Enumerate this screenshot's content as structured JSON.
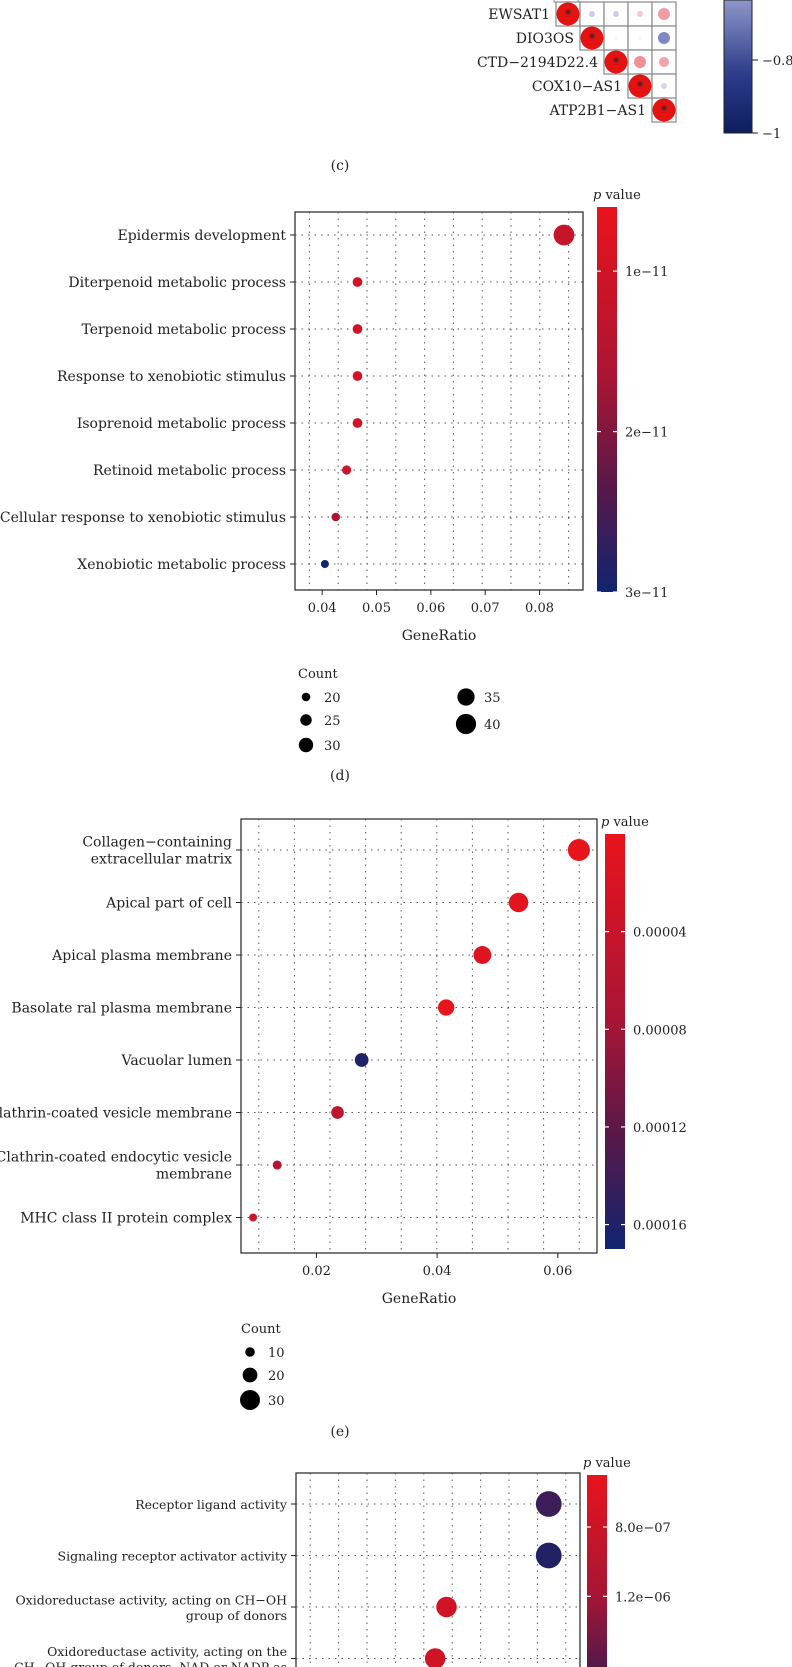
{
  "panel_c": {
    "label": "(c)",
    "gene_labels": [
      "EWSAT1",
      "DIO3OS",
      "CTD−2194D22.4",
      "COX10−AS1",
      "ATP2B1−AS1"
    ],
    "star": "*",
    "colorbar_ticks": [
      "−0.8",
      "−1"
    ]
  },
  "panel_d": {
    "label": "(d)"
  },
  "panel_e": {
    "label": "(e)"
  },
  "legend_colors": {
    "high": "#e8141c",
    "mid": "#5a1848",
    "low": "#102470"
  },
  "chart_data": [
    {
      "id": "d",
      "type": "scatter",
      "title": "",
      "xlabel": "GeneRatio",
      "ylabel": "",
      "xlim": [
        0.035,
        0.088
      ],
      "xticks": [
        "0.04",
        "0.05",
        "0.06",
        "0.07",
        "0.08"
      ],
      "xtick_values": [
        0.04,
        0.05,
        0.06,
        0.07,
        0.08
      ],
      "categories": [
        "Epidermis development",
        "Diterpenoid metabolic process",
        "Terpenoid metabolic process",
        "Response to xenobiotic stimulus",
        "Isoprenoid metabolic process",
        "Retinoid metabolic process",
        "Cellular response to xenobiotic stimulus",
        "Xenobiotic metabolic process"
      ],
      "x": [
        0.0845,
        0.0465,
        0.0465,
        0.0465,
        0.0465,
        0.0445,
        0.0425,
        0.0405
      ],
      "count": [
        41,
        22,
        22,
        22,
        22,
        21,
        20,
        19
      ],
      "pvalue": [
        1.2e-11,
        1e-11,
        1e-11,
        1e-11,
        1e-11,
        1.1e-11,
        1.6e-11,
        3e-11
      ],
      "color_title": "p value",
      "color_range": [
        6e-12,
        3e-11
      ],
      "color_ticks": [
        "1e−11",
        "2e−11",
        "3e−11"
      ],
      "color_tick_values": [
        1e-11,
        2e-11,
        3e-11
      ],
      "size_title": "Count",
      "size_legend": [
        {
          "label": "20",
          "value": 20
        },
        {
          "label": "25",
          "value": 25
        },
        {
          "label": "30",
          "value": 30
        },
        {
          "label": "35",
          "value": 35
        },
        {
          "label": "40",
          "value": 40
        }
      ],
      "grid": true
    },
    {
      "id": "e",
      "type": "scatter",
      "title": "",
      "xlabel": "GeneRatio",
      "ylabel": "",
      "xlim": [
        0.0075,
        0.0665
      ],
      "xticks": [
        "0.02",
        "0.04",
        "0.06"
      ],
      "xtick_values": [
        0.02,
        0.04,
        0.06
      ],
      "categories": [
        [
          "Collagen−containing",
          "extracellular matrix"
        ],
        [
          "Apical part of cell"
        ],
        [
          "Apical plasma membrane"
        ],
        [
          "Basolate ral plasma membrane"
        ],
        [
          "Vacuolar lumen"
        ],
        [
          "Clathrin-coated vesicle membrane"
        ],
        [
          "Clathrin-coated endocytic vesicle",
          "membrane"
        ],
        [
          "MHC class II protein complex"
        ]
      ],
      "x": [
        0.0635,
        0.0535,
        0.0475,
        0.0415,
        0.0275,
        0.0235,
        0.0135,
        0.0095
      ],
      "count": [
        34,
        29,
        26,
        23,
        18,
        16,
        9,
        7
      ],
      "pvalue": [
        0.0,
        6e-06,
        9e-06,
        4e-06,
        0.00016,
        5e-05,
        6e-05,
        4e-05
      ],
      "color_title": "p value",
      "color_range": [
        0.0,
        0.00017
      ],
      "color_ticks": [
        "0.00004",
        "0.00008",
        "0.00012",
        "0.00016"
      ],
      "color_tick_values": [
        4e-05,
        8e-05,
        0.00012,
        0.00016
      ],
      "size_title": "Count",
      "size_legend": [
        {
          "label": "10",
          "value": 10
        },
        {
          "label": "20",
          "value": 20
        },
        {
          "label": "30",
          "value": 30
        }
      ],
      "grid": true
    },
    {
      "id": "f",
      "type": "scatter",
      "title": "",
      "xlabel": "",
      "ylabel": "",
      "xlim": [
        0.0,
        1.0
      ],
      "categories": [
        [
          "Receptor ligand activity"
        ],
        [
          "Signaling receptor activator activity"
        ],
        [
          "Oxidoreductase activity, acting on CH−OH",
          "group of donors"
        ],
        [
          "Oxidoreductase activity, acting on the",
          "CH−OH group of donors, NAD or NADP as"
        ]
      ],
      "x": [
        0.89,
        0.89,
        0.53,
        0.49
      ],
      "count": [
        30,
        30,
        22,
        22
      ],
      "pvalue": [
        1.75e-06,
        1.9e-06,
        7.5e-07,
        7.5e-07
      ],
      "color_title": "p value",
      "color_range": [
        5e-07,
        2e-06
      ],
      "color_ticks": [
        "8.0e−07",
        "1.2e−06"
      ],
      "color_tick_values": [
        8e-07,
        1.2e-06
      ],
      "grid": true
    }
  ]
}
